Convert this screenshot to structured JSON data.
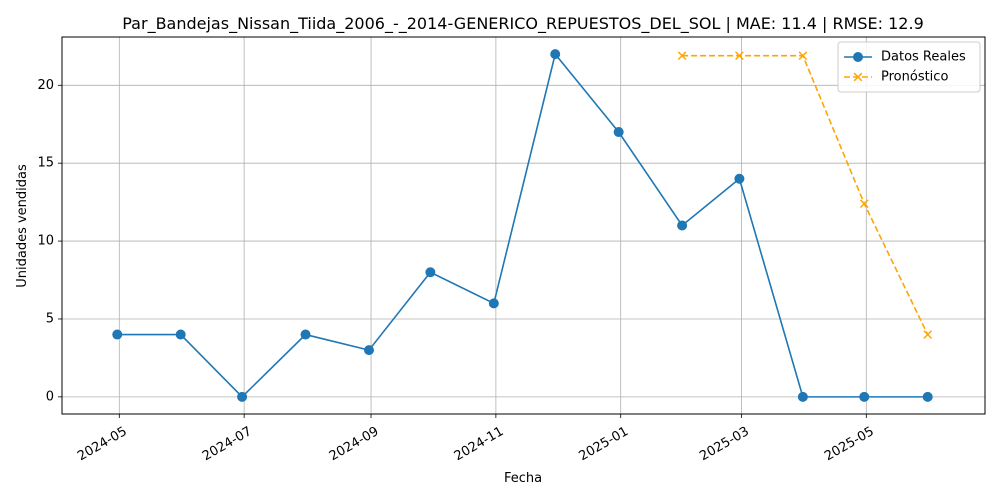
{
  "chart_data": {
    "type": "line",
    "title": "Par_Bandejas_Nissan_Tiida_2006_-_2014-GENERICO_REPUESTOS_DEL_SOL | MAE: 11.4 | RMSE: 12.9",
    "xlabel": "Fecha",
    "ylabel": "Unidades vendidas",
    "ylim": [
      -1.1,
      23.1
    ],
    "xlim": [
      "2024-04-03",
      "2025-06-28"
    ],
    "grid": true,
    "legend_position": "top-right",
    "x_ticks": [
      "2024-05-01",
      "2024-07-01",
      "2024-09-01",
      "2024-11-01",
      "2025-01-01",
      "2025-03-01",
      "2025-05-01"
    ],
    "x_tick_labels": [
      "2024-05",
      "2024-07",
      "2024-09",
      "2024-11",
      "2025-01",
      "2025-03",
      "2025-05"
    ],
    "y_ticks": [
      0,
      5,
      10,
      15,
      20
    ],
    "y_tick_labels": [
      "0",
      "5",
      "10",
      "15",
      "20"
    ],
    "series": [
      {
        "name": "Datos Reales",
        "color": "#1f77b4",
        "marker": "circle",
        "line_style": "solid",
        "points": [
          {
            "x": "2024-04-30",
            "y": 4
          },
          {
            "x": "2024-05-31",
            "y": 4
          },
          {
            "x": "2024-06-30",
            "y": 0
          },
          {
            "x": "2024-07-31",
            "y": 4
          },
          {
            "x": "2024-08-31",
            "y": 3
          },
          {
            "x": "2024-09-30",
            "y": 8
          },
          {
            "x": "2024-10-31",
            "y": 6
          },
          {
            "x": "2024-11-30",
            "y": 22
          },
          {
            "x": "2024-12-31",
            "y": 17
          },
          {
            "x": "2025-01-31",
            "y": 11
          },
          {
            "x": "2025-02-28",
            "y": 14
          },
          {
            "x": "2025-03-31",
            "y": 0
          },
          {
            "x": "2025-04-30",
            "y": 0
          },
          {
            "x": "2025-05-31",
            "y": 0
          }
        ]
      },
      {
        "name": "Pronóstico",
        "color": "#ffa500",
        "marker": "x",
        "line_style": "dashed",
        "points": [
          {
            "x": "2025-01-31",
            "y": 21.9
          },
          {
            "x": "2025-02-28",
            "y": 21.9
          },
          {
            "x": "2025-03-31",
            "y": 21.9
          },
          {
            "x": "2025-04-30",
            "y": 12.4
          },
          {
            "x": "2025-05-31",
            "y": 4
          }
        ]
      }
    ]
  }
}
